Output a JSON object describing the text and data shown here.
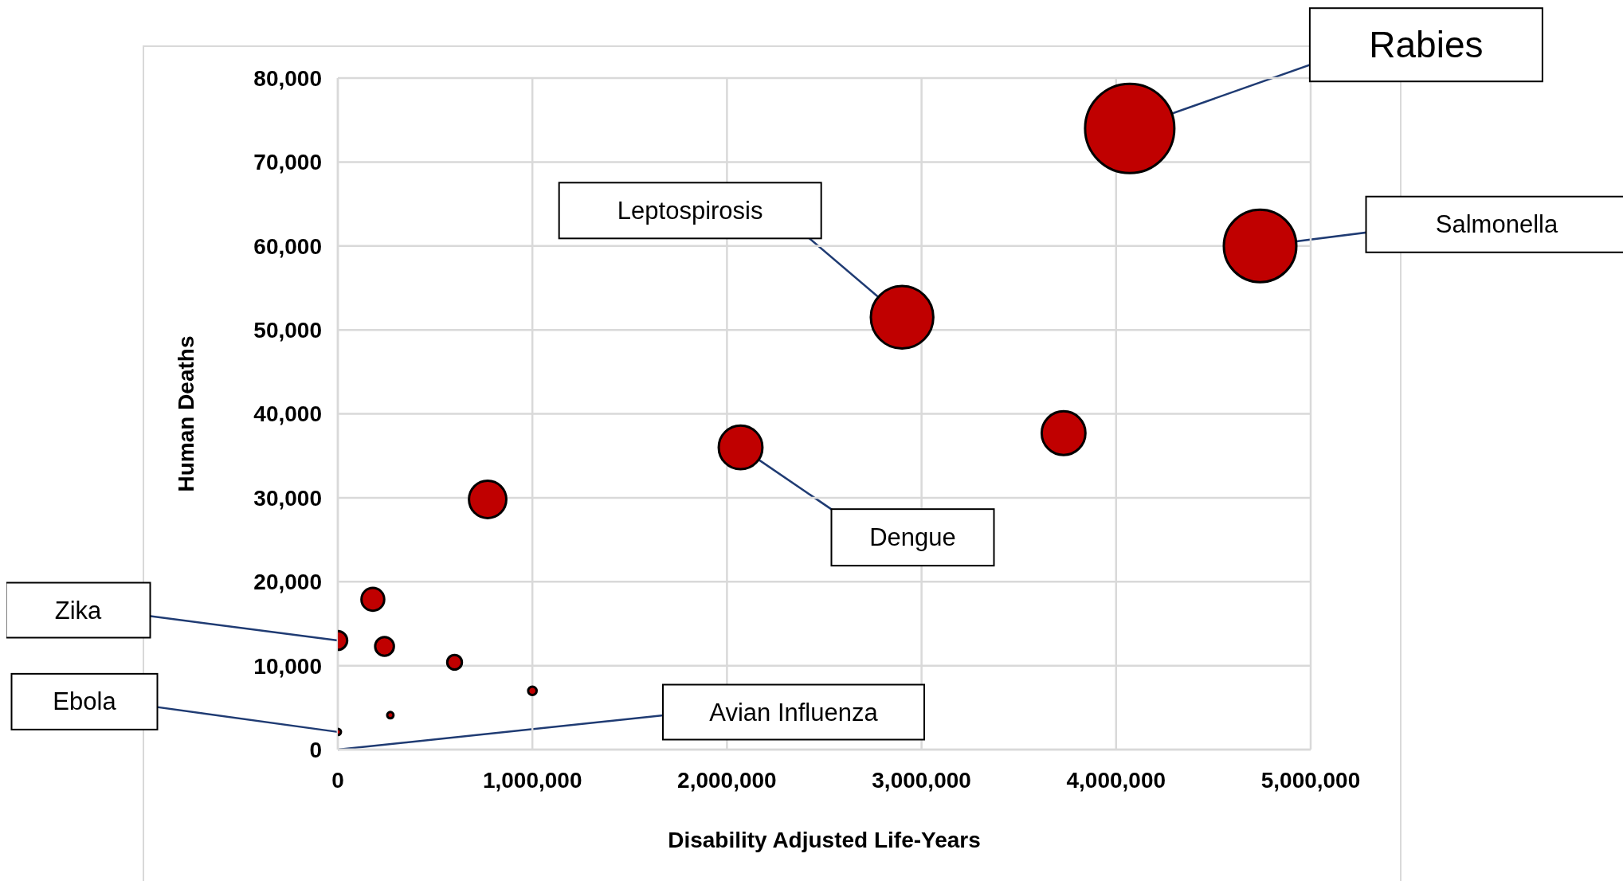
{
  "chart_data": {
    "type": "bubble",
    "xlabel": "Disability Adjusted Life-Years",
    "ylabel": "Human Deaths",
    "xlim": [
      0,
      5000000
    ],
    "xticks": [
      {
        "value": 0,
        "label": "0"
      },
      {
        "value": 1000000,
        "label": "1,000,000"
      },
      {
        "value": 2000000,
        "label": "2,000,000"
      },
      {
        "value": 3000000,
        "label": "3,000,000"
      },
      {
        "value": 4000000,
        "label": "4,000,000"
      },
      {
        "value": 5000000,
        "label": "5,000,000"
      }
    ],
    "ylim": [
      0,
      80000
    ],
    "yticks": [
      {
        "value": 0,
        "label": "0"
      },
      {
        "value": 10000,
        "label": "10,000"
      },
      {
        "value": 20000,
        "label": "20,000"
      },
      {
        "value": 30000,
        "label": "30,000"
      },
      {
        "value": 40000,
        "label": "40,000"
      },
      {
        "value": 50000,
        "label": "50,000"
      },
      {
        "value": 60000,
        "label": "60,000"
      },
      {
        "value": 70000,
        "label": "70,000"
      },
      {
        "value": 80000,
        "label": "80,000"
      }
    ],
    "grid": true,
    "legend": false,
    "series": [
      {
        "color": "#c00000",
        "x": [
          4070000,
          4740000,
          2900000,
          3730000,
          2070000,
          770000,
          180000,
          0,
          240000,
          600000,
          1000000,
          270000,
          0
        ],
        "values": [
          74000,
          60000,
          51500,
          37700,
          36000,
          29800,
          17900,
          13000,
          12300,
          10400,
          7000,
          4100,
          2100
        ],
        "sizes": [
          1,
          0.66,
          0.49,
          0.24,
          0.24,
          0.175,
          0.065,
          0.044,
          0.044,
          0.027,
          0.009,
          0.005,
          0.005
        ]
      }
    ],
    "annotations": [
      {
        "text": "Rabies",
        "x": 4070000,
        "y": 74000
      },
      {
        "text": "Salmonella",
        "x": 4740000,
        "y": 60000
      },
      {
        "text": "Leptospirosis",
        "x": 2900000,
        "y": 51500
      },
      {
        "text": "Dengue",
        "x": 2070000,
        "y": 36000
      },
      {
        "text": "Zika",
        "x": 0,
        "y": 13000
      },
      {
        "text": "Ebola",
        "x": 0,
        "y": 2100
      },
      "Avian Influenza"
    ]
  }
}
